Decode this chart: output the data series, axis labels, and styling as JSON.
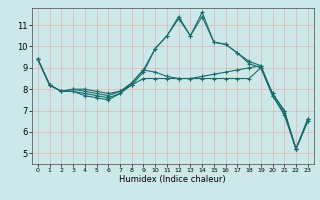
{
  "xlabel": "Humidex (Indice chaleur)",
  "background_color": "#cce8e8",
  "grid_color": "#ddbbbb",
  "line_color": "#1a6b6b",
  "x_ticks": [
    0,
    1,
    2,
    3,
    4,
    5,
    6,
    7,
    8,
    9,
    10,
    11,
    12,
    13,
    14,
    15,
    16,
    17,
    18,
    19,
    20,
    21,
    22,
    23
  ],
  "y_ticks": [
    5,
    6,
    7,
    8,
    9,
    10,
    11
  ],
  "ylim": [
    4.5,
    11.8
  ],
  "xlim": [
    -0.5,
    23.5
  ],
  "series": [
    [
      9.4,
      8.2,
      7.9,
      7.9,
      7.7,
      7.6,
      7.5,
      7.8,
      8.2,
      8.8,
      9.9,
      10.5,
      11.3,
      10.5,
      11.6,
      10.2,
      10.1,
      9.7,
      9.3,
      9.1,
      7.7,
      6.9,
      5.2,
      6.5
    ],
    [
      9.4,
      8.2,
      7.9,
      7.9,
      7.8,
      7.7,
      7.6,
      7.8,
      8.3,
      8.9,
      9.9,
      10.5,
      11.4,
      10.5,
      11.4,
      10.2,
      10.1,
      9.7,
      9.2,
      9.0,
      7.8,
      7.0,
      5.2,
      6.5
    ],
    [
      9.4,
      8.2,
      7.9,
      8.0,
      7.9,
      7.8,
      7.7,
      7.9,
      8.3,
      8.9,
      8.8,
      8.6,
      8.5,
      8.5,
      8.6,
      8.7,
      8.8,
      8.9,
      9.0,
      9.1,
      7.8,
      7.0,
      5.2,
      6.6
    ],
    [
      9.4,
      8.2,
      7.9,
      8.0,
      8.0,
      7.9,
      7.8,
      7.9,
      8.2,
      8.5,
      8.5,
      8.5,
      8.5,
      8.5,
      8.5,
      8.5,
      8.5,
      8.5,
      8.5,
      9.0,
      7.7,
      6.8,
      5.2,
      6.6
    ]
  ]
}
